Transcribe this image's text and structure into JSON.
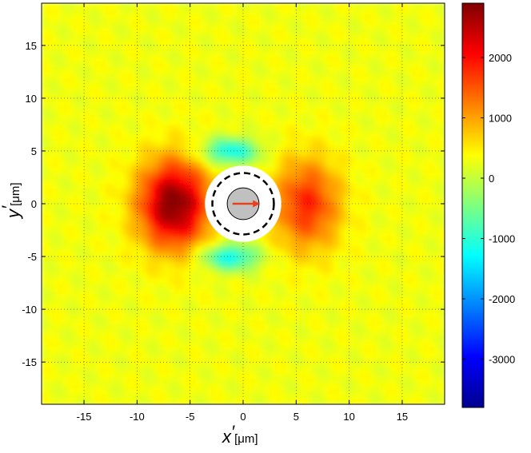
{
  "chart_data": {
    "type": "heatmap",
    "title": "",
    "xlabel": {
      "symbol": "x",
      "prime": "′",
      "unit": "[μm]"
    },
    "ylabel": {
      "symbol": "y",
      "prime": "′",
      "unit": "[μm]"
    },
    "xlim": [
      -19,
      19
    ],
    "ylim": [
      -19,
      19
    ],
    "x_ticks": [
      -15,
      -10,
      -5,
      0,
      5,
      10,
      15
    ],
    "y_ticks": [
      -15,
      -10,
      -5,
      0,
      5,
      10,
      15
    ],
    "grid": "dotted",
    "colormap": "jet",
    "colorbar": {
      "range": [
        -3800,
        2900
      ],
      "ticks": [
        -3000,
        -2000,
        -1000,
        0,
        1000,
        2000
      ]
    },
    "features": [
      {
        "name": "positive lobe left",
        "x": -6.5,
        "y": 0,
        "value": 2600,
        "sx": 2.3,
        "sy": 2.9
      },
      {
        "name": "positive lobe right",
        "x": 6.0,
        "y": 0,
        "value": 1500,
        "sx": 2.2,
        "sy": 3.0
      },
      {
        "name": "negative lobe top",
        "x": -1.2,
        "y": 5.0,
        "value": -1500,
        "sx": 1.9,
        "sy": 0.9
      },
      {
        "name": "negative lobe bottom",
        "x": -1.2,
        "y": -5.0,
        "value": -1500,
        "sx": 1.9,
        "sy": 0.9
      }
    ],
    "background_value": 300,
    "masked_circle_radius": 3.6,
    "dashed_circle_radius": 2.9,
    "bead_radius": 1.5,
    "arrow": {
      "from": [
        -1.0,
        0
      ],
      "to": [
        1.6,
        0
      ],
      "color": "#e8401c"
    }
  },
  "colors": {
    "mask": "#ffffff",
    "bead_fill": "#c0c0c0",
    "dashed_circle": "#000000"
  }
}
